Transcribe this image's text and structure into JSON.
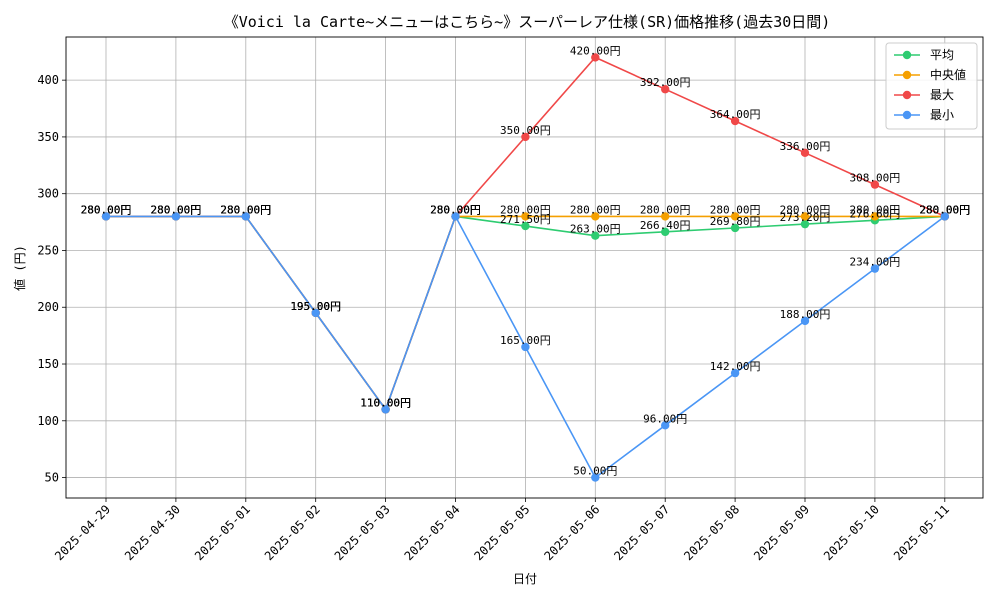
{
  "chart_data": {
    "type": "line",
    "title": "《Voici la Carte~メニューはこちら~》スーパーレア仕様(SR)価格推移(過去30日間)",
    "xlabel": "日付",
    "ylabel": "値 (円)",
    "ylim": [
      32,
      438
    ],
    "yticks": [
      50,
      100,
      150,
      200,
      250,
      300,
      350,
      400
    ],
    "grid": true,
    "legend_position": "top-right",
    "label_suffix": "円",
    "categories": [
      "2025-04-29",
      "2025-04-30",
      "2025-05-01",
      "2025-05-02",
      "2025-05-03",
      "2025-05-04",
      "2025-05-05",
      "2025-05-06",
      "2025-05-07",
      "2025-05-08",
      "2025-05-09",
      "2025-05-10",
      "2025-05-11"
    ],
    "series": [
      {
        "name": "平均",
        "color": "#2ecc71",
        "values": [
          280,
          280,
          280,
          195,
          110,
          280,
          271.5,
          263,
          266.4,
          269.8,
          273.2,
          276.6,
          280
        ]
      },
      {
        "name": "中央値",
        "color": "#f5a000",
        "values": [
          280,
          280,
          280,
          195,
          110,
          280,
          280,
          280,
          280,
          280,
          280,
          280,
          280
        ]
      },
      {
        "name": "最大",
        "color": "#f04848",
        "values": [
          280,
          280,
          280,
          195,
          110,
          280,
          350,
          420,
          392,
          364,
          336,
          308,
          280
        ]
      },
      {
        "name": "最小",
        "color": "#4a96f5",
        "values": [
          280,
          280,
          280,
          195,
          110,
          280,
          165,
          50,
          96,
          142,
          188,
          234,
          280
        ]
      }
    ]
  }
}
